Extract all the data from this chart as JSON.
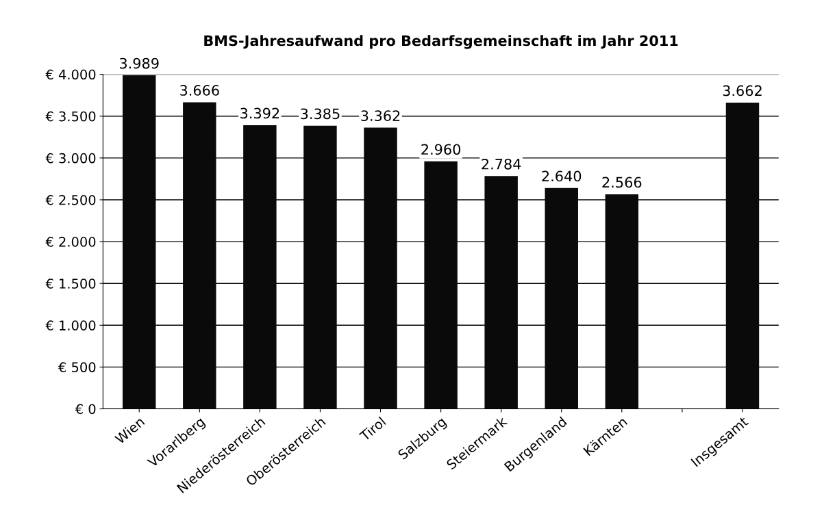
{
  "chart_data": {
    "type": "bar",
    "title": "BMS-Jahresaufwand pro Bedarfsgemeinschaft im Jahr 2011",
    "categories": [
      "Wien",
      "Vorarlberg",
      "Niederösterreich",
      "Oberösterreich",
      "Tirol",
      "Salzburg",
      "Steiermark",
      "Burgenland",
      "Kärnten",
      null,
      "Insgesamt"
    ],
    "values": [
      3989,
      3666,
      3392,
      3385,
      3362,
      2960,
      2784,
      2640,
      2566,
      null,
      3662
    ],
    "value_labels": [
      "3.989",
      "3.666",
      "3.392",
      "3.385",
      "3.362",
      "2.960",
      "2.784",
      "2.640",
      "2.566",
      null,
      "3.662"
    ],
    "color": "#0a0a0a",
    "ylim": [
      0,
      4000
    ],
    "yticks": [
      {
        "value": 0,
        "label": "€ 0"
      },
      {
        "value": 500,
        "label": "€ 500"
      },
      {
        "value": 1000,
        "label": "€ 1.000"
      },
      {
        "value": 1500,
        "label": "€ 1.500"
      },
      {
        "value": 2000,
        "label": "€ 2.000"
      },
      {
        "value": 2500,
        "label": "€ 2.500"
      },
      {
        "value": 3000,
        "label": "€ 3.000"
      },
      {
        "value": 3500,
        "label": "€ 3.500"
      },
      {
        "value": 4000,
        "label": "€ 4.000"
      }
    ],
    "grid": "y"
  }
}
